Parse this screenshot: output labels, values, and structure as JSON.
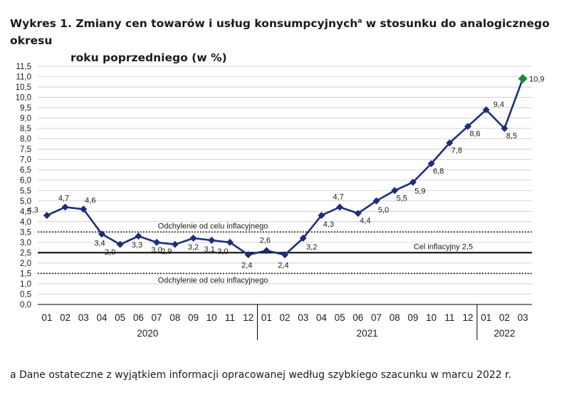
{
  "title": {
    "prefix": "Wykres 1. Zmiany cen towarów i usług konsumpcyjnych",
    "marker": "a",
    "rest": " w stosunku do analogicznego okresu",
    "line2": "roku poprzedniego (w %)"
  },
  "footnote": "a Dane ostateczne z wyjątkiem informacji opracowanej według szybkiego szacunku w marcu 2022 r.",
  "colors": {
    "series": "#1f2d7b",
    "last_point": "#1a8a3a",
    "axis": "#000000",
    "grid": "#c8c8c8"
  },
  "chart_data": {
    "type": "line",
    "title": "Zmiany cen towarów i usług konsumpcyjnych w stosunku do analogicznego okresu roku poprzedniego (w %)",
    "x_tick_labels": [
      "01",
      "02",
      "03",
      "04",
      "05",
      "06",
      "07",
      "08",
      "09",
      "10",
      "11",
      "12",
      "01",
      "02",
      "03",
      "04",
      "05",
      "06",
      "07",
      "08",
      "09",
      "10",
      "11",
      "12",
      "01",
      "02",
      "03"
    ],
    "year_labels": [
      {
        "label": "2020",
        "months": 12
      },
      {
        "label": "2021",
        "months": 12
      },
      {
        "label": "2022",
        "months": 3
      }
    ],
    "values": [
      4.3,
      4.7,
      4.6,
      3.4,
      2.9,
      3.3,
      3.0,
      2.9,
      3.2,
      3.1,
      3.0,
      2.4,
      2.6,
      2.4,
      3.2,
      4.3,
      4.7,
      4.4,
      5.0,
      5.5,
      5.9,
      6.8,
      7.8,
      8.6,
      9.4,
      8.5,
      10.9
    ],
    "data_labels": [
      "4,3",
      "4,7",
      "4,6",
      "3,4",
      "2,9",
      "3,3",
      "3,0",
      "2,9",
      "3,2",
      "3,1",
      "3,0",
      "2,4",
      "2,6",
      "2,4",
      "3,2",
      "4,3",
      "4,7",
      "4,4",
      "5,0",
      "5,5",
      "5,9",
      "6,8",
      "7,8",
      "8,6",
      "9,4",
      "8,5",
      "10,9"
    ],
    "ylim": [
      0,
      11.5
    ],
    "y_step": 0.5,
    "y_tick_labels": [
      "0,0",
      "0,5",
      "1,0",
      "1,5",
      "2,0",
      "2,5",
      "3,0",
      "3,5",
      "4,0",
      "4,5",
      "5,0",
      "5,5",
      "6,0",
      "6,5",
      "7,0",
      "7,5",
      "8,0",
      "8,5",
      "9,0",
      "9,5",
      "10,0",
      "10,5",
      "11,0",
      "11,5"
    ],
    "grid": true,
    "reference_lines": [
      {
        "value": 3.5,
        "style": "dotted",
        "label": "Odchylenie od celu inflacyjnego"
      },
      {
        "value": 2.5,
        "style": "solid",
        "label": "Cel inflacyjny 2,5"
      },
      {
        "value": 1.5,
        "style": "dotted",
        "label": "Odchylenie od celu inflacyjnego"
      }
    ]
  }
}
